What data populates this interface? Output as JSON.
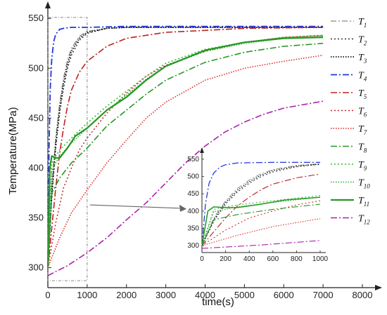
{
  "chart_data": {
    "type": "line",
    "xlabel": "time(s)",
    "ylabel": "Temperature(MPa)",
    "xlim": [
      0,
      8000
    ],
    "ylim": [
      280,
      560
    ],
    "xticks": [
      "0",
      "1000",
      "2000",
      "3000",
      "4000",
      "5000",
      "6000",
      "7000",
      "8000"
    ],
    "yticks": [
      "300",
      "350",
      "400",
      "450",
      "500",
      "550"
    ],
    "legend_position": "right",
    "highlight_box": {
      "x": [
        0,
        1000
      ],
      "y": [
        287,
        551
      ]
    },
    "series": [
      {
        "name": "T",
        "sub": "1",
        "color": "#888888",
        "dash": "8,3,2,3",
        "width": 1.3,
        "points": [
          [
            0,
            300
          ],
          [
            50,
            340
          ],
          [
            100,
            380
          ],
          [
            200,
            430
          ],
          [
            300,
            465
          ],
          [
            400,
            490
          ],
          [
            500,
            508
          ],
          [
            600,
            520
          ],
          [
            800,
            532
          ],
          [
            1000,
            537
          ],
          [
            1500,
            540
          ],
          [
            2000,
            541
          ],
          [
            3000,
            541
          ],
          [
            5000,
            541
          ],
          [
            7000,
            541
          ]
        ]
      },
      {
        "name": "T",
        "sub": "2",
        "color": "#333333",
        "dash": "2,3",
        "width": 1.5,
        "points": [
          [
            0,
            300
          ],
          [
            50,
            335
          ],
          [
            100,
            370
          ],
          [
            200,
            420
          ],
          [
            300,
            455
          ],
          [
            400,
            480
          ],
          [
            500,
            500
          ],
          [
            600,
            513
          ],
          [
            800,
            528
          ],
          [
            1000,
            535
          ],
          [
            1500,
            540
          ],
          [
            2000,
            541
          ],
          [
            3000,
            541
          ],
          [
            5000,
            541
          ],
          [
            7000,
            541
          ]
        ]
      },
      {
        "name": "T",
        "sub": "3",
        "color": "#111111",
        "dash": "1.5,2",
        "width": 1.8,
        "points": [
          [
            0,
            300
          ],
          [
            50,
            338
          ],
          [
            100,
            375
          ],
          [
            200,
            425
          ],
          [
            300,
            460
          ],
          [
            400,
            485
          ],
          [
            500,
            504
          ],
          [
            600,
            517
          ],
          [
            800,
            530
          ],
          [
            1000,
            536
          ],
          [
            1500,
            540
          ],
          [
            2000,
            541
          ],
          [
            3000,
            541
          ],
          [
            5000,
            541
          ],
          [
            7000,
            541
          ]
        ]
      },
      {
        "name": "T",
        "sub": "4",
        "color": "#2233dd",
        "dash": "9,3,2,3",
        "width": 1.8,
        "points": [
          [
            0,
            300
          ],
          [
            30,
            420
          ],
          [
            60,
            480
          ],
          [
            100,
            510
          ],
          [
            150,
            527
          ],
          [
            200,
            534
          ],
          [
            300,
            539
          ],
          [
            400,
            540
          ],
          [
            600,
            541
          ],
          [
            1000,
            541
          ],
          [
            2000,
            542
          ],
          [
            4000,
            542
          ],
          [
            7000,
            542
          ]
        ]
      },
      {
        "name": "T",
        "sub": "5",
        "color": "#bb2222",
        "dash": "9,3,2,3",
        "width": 1.6,
        "points": [
          [
            0,
            300
          ],
          [
            100,
            340
          ],
          [
            200,
            380
          ],
          [
            300,
            415
          ],
          [
            400,
            440
          ],
          [
            500,
            462
          ],
          [
            600,
            478
          ],
          [
            800,
            496
          ],
          [
            1000,
            507
          ],
          [
            1500,
            522
          ],
          [
            2000,
            530
          ],
          [
            3000,
            536
          ],
          [
            4000,
            538
          ],
          [
            5000,
            540
          ],
          [
            7000,
            541
          ]
        ]
      },
      {
        "name": "T",
        "sub": "6",
        "color": "#cc2222",
        "dash": "2,3",
        "width": 1.5,
        "points": [
          [
            0,
            300
          ],
          [
            200,
            345
          ],
          [
            400,
            380
          ],
          [
            600,
            400
          ],
          [
            800,
            418
          ],
          [
            1000,
            430
          ],
          [
            1500,
            455
          ],
          [
            2000,
            475
          ],
          [
            2500,
            492
          ],
          [
            3000,
            503
          ],
          [
            4000,
            517
          ],
          [
            5000,
            526
          ],
          [
            6000,
            531
          ],
          [
            7000,
            533
          ]
        ]
      },
      {
        "name": "T",
        "sub": "7",
        "color": "#dd2222",
        "dash": "1.5,2",
        "width": 1.5,
        "points": [
          [
            0,
            300
          ],
          [
            300,
            330
          ],
          [
            600,
            355
          ],
          [
            1000,
            378
          ],
          [
            1500,
            405
          ],
          [
            2000,
            428
          ],
          [
            2500,
            450
          ],
          [
            3000,
            466
          ],
          [
            4000,
            488
          ],
          [
            5000,
            500
          ],
          [
            6000,
            507
          ],
          [
            7000,
            513
          ]
        ]
      },
      {
        "name": "T",
        "sub": "8",
        "color": "#229922",
        "dash": "9,3,2,3",
        "width": 1.6,
        "points": [
          [
            0,
            300
          ],
          [
            100,
            375
          ],
          [
            300,
            390
          ],
          [
            600,
            405
          ],
          [
            1000,
            420
          ],
          [
            1500,
            442
          ],
          [
            2000,
            458
          ],
          [
            2500,
            474
          ],
          [
            3000,
            488
          ],
          [
            4000,
            506
          ],
          [
            5000,
            516
          ],
          [
            6000,
            522
          ],
          [
            7000,
            525
          ]
        ]
      },
      {
        "name": "T",
        "sub": "9",
        "color": "#33bb33",
        "dash": "2,3",
        "width": 1.6,
        "points": [
          [
            0,
            300
          ],
          [
            100,
            405
          ],
          [
            300,
            418
          ],
          [
            600,
            430
          ],
          [
            1000,
            445
          ],
          [
            1500,
            462
          ],
          [
            2000,
            477
          ],
          [
            2500,
            492
          ],
          [
            3000,
            505
          ],
          [
            4000,
            519
          ],
          [
            5000,
            526
          ],
          [
            6000,
            531
          ],
          [
            7000,
            533
          ]
        ]
      },
      {
        "name": "T",
        "sub": "10",
        "color": "#33aa33",
        "dash": "1.5,2",
        "width": 1.6,
        "points": [
          [
            0,
            300
          ],
          [
            100,
            398
          ],
          [
            300,
            412
          ],
          [
            600,
            425
          ],
          [
            1000,
            440
          ],
          [
            1500,
            458
          ],
          [
            2000,
            473
          ],
          [
            2500,
            489
          ],
          [
            3000,
            502
          ],
          [
            4000,
            517
          ],
          [
            5000,
            525
          ],
          [
            6000,
            530
          ],
          [
            7000,
            532
          ]
        ]
      },
      {
        "name": "T",
        "sub": "11",
        "color": "#229922",
        "dash": "",
        "width": 2.2,
        "points": [
          [
            0,
            300
          ],
          [
            50,
            400
          ],
          [
            100,
            412
          ],
          [
            200,
            410
          ],
          [
            300,
            410
          ],
          [
            500,
            420
          ],
          [
            700,
            432
          ],
          [
            1000,
            440
          ],
          [
            1500,
            458
          ],
          [
            2000,
            471
          ],
          [
            2500,
            488
          ],
          [
            3000,
            502
          ],
          [
            4000,
            518
          ],
          [
            5000,
            526
          ],
          [
            6000,
            530
          ],
          [
            7000,
            531
          ]
        ]
      },
      {
        "name": "T",
        "sub": "12",
        "color": "#aa22aa",
        "dash": "9,3,2,3",
        "width": 1.6,
        "points": [
          [
            0,
            292
          ],
          [
            500,
            302
          ],
          [
            1000,
            315
          ],
          [
            1500,
            330
          ],
          [
            2000,
            348
          ],
          [
            2500,
            365
          ],
          [
            3000,
            385
          ],
          [
            3500,
            405
          ],
          [
            4000,
            422
          ],
          [
            4500,
            436
          ],
          [
            5000,
            446
          ],
          [
            5500,
            454
          ],
          [
            6000,
            460
          ],
          [
            7000,
            467
          ]
        ]
      }
    ]
  },
  "inset": {
    "xlim": [
      0,
      1000
    ],
    "ylim": [
      280,
      560
    ],
    "xticks": [
      "0",
      "200",
      "400",
      "600",
      "800",
      "1000"
    ],
    "yticks": [
      "300",
      "350",
      "400",
      "450",
      "500",
      "550"
    ]
  }
}
